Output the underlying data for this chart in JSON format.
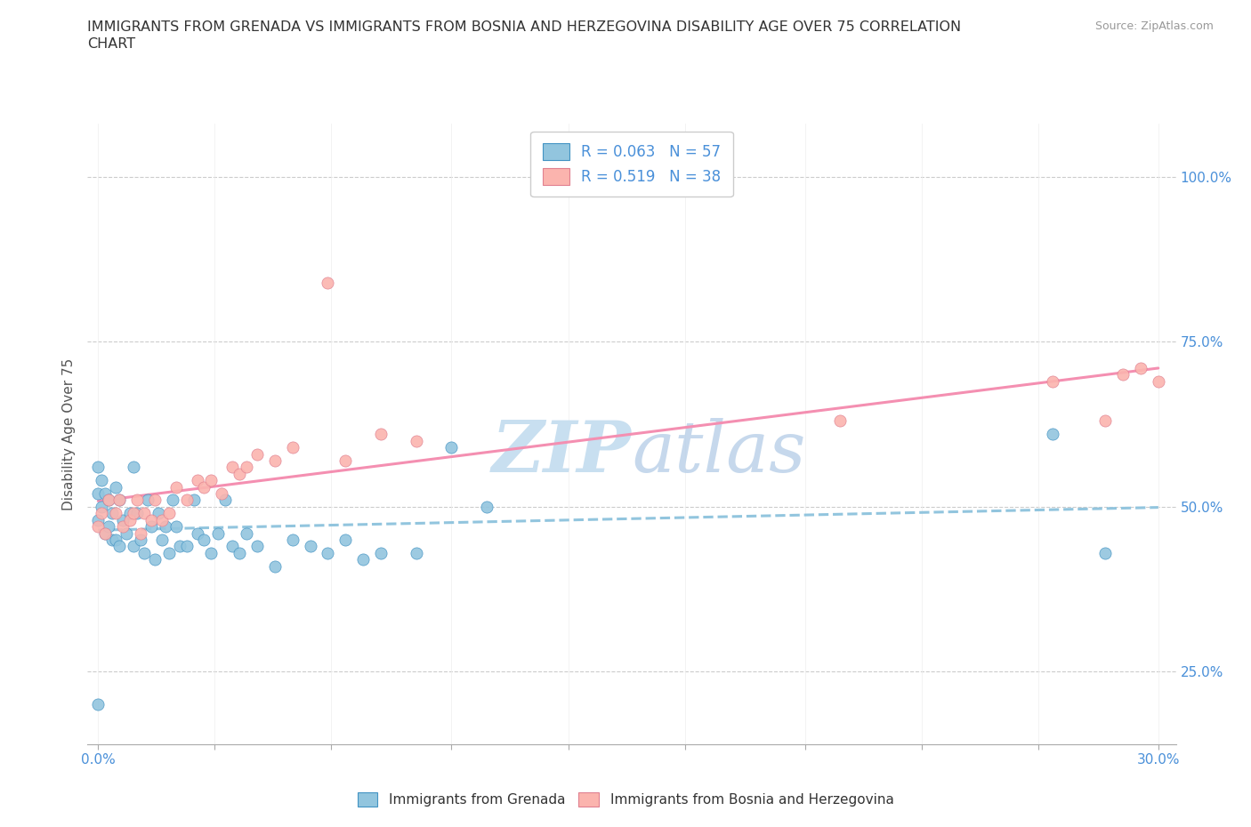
{
  "title_line1": "IMMIGRANTS FROM GRENADA VS IMMIGRANTS FROM BOSNIA AND HERZEGOVINA DISABILITY AGE OVER 75 CORRELATION",
  "title_line2": "CHART",
  "source": "Source: ZipAtlas.com",
  "ylabel": "Disability Age Over 75",
  "xlim": [
    -0.003,
    0.305
  ],
  "ylim": [
    0.14,
    1.08
  ],
  "xtick_positions": [
    0.0,
    0.033,
    0.066,
    0.1,
    0.133,
    0.166,
    0.2,
    0.233,
    0.266,
    0.3
  ],
  "ytick_positions": [
    0.25,
    0.5,
    0.75,
    1.0
  ],
  "ytick_labels": [
    "25.0%",
    "50.0%",
    "75.0%",
    "100.0%"
  ],
  "grenada_R": 0.063,
  "grenada_N": 57,
  "bosnia_R": 0.519,
  "bosnia_N": 38,
  "blue_color": "#92c5de",
  "blue_edge": "#4393c3",
  "pink_color": "#f4a582",
  "pink_edge": "#d6604d",
  "pink_color2": "#fbb4ae",
  "pink_edge2": "#e08090",
  "trend_blue_color": "#92c5de",
  "trend_pink_color": "#f48fb1",
  "watermark_color": "#c8dff0",
  "background_color": "#ffffff",
  "grenada_x": [
    0.0,
    0.0,
    0.0,
    0.0,
    0.001,
    0.001,
    0.002,
    0.002,
    0.003,
    0.003,
    0.004,
    0.004,
    0.005,
    0.005,
    0.006,
    0.006,
    0.007,
    0.008,
    0.009,
    0.01,
    0.01,
    0.011,
    0.012,
    0.013,
    0.014,
    0.015,
    0.016,
    0.017,
    0.018,
    0.019,
    0.02,
    0.021,
    0.022,
    0.023,
    0.025,
    0.027,
    0.028,
    0.03,
    0.032,
    0.034,
    0.036,
    0.038,
    0.04,
    0.042,
    0.045,
    0.05,
    0.055,
    0.06,
    0.065,
    0.07,
    0.075,
    0.08,
    0.09,
    0.1,
    0.11,
    0.27,
    0.285
  ],
  "grenada_y": [
    0.2,
    0.48,
    0.52,
    0.56,
    0.5,
    0.54,
    0.46,
    0.52,
    0.47,
    0.51,
    0.49,
    0.45,
    0.45,
    0.53,
    0.44,
    0.51,
    0.48,
    0.46,
    0.49,
    0.44,
    0.56,
    0.49,
    0.45,
    0.43,
    0.51,
    0.47,
    0.42,
    0.49,
    0.45,
    0.47,
    0.43,
    0.51,
    0.47,
    0.44,
    0.44,
    0.51,
    0.46,
    0.45,
    0.43,
    0.46,
    0.51,
    0.44,
    0.43,
    0.46,
    0.44,
    0.41,
    0.45,
    0.44,
    0.43,
    0.45,
    0.42,
    0.43,
    0.43,
    0.59,
    0.5,
    0.61,
    0.43
  ],
  "bosnia_x": [
    0.0,
    0.001,
    0.002,
    0.003,
    0.005,
    0.006,
    0.007,
    0.009,
    0.01,
    0.011,
    0.012,
    0.013,
    0.015,
    0.016,
    0.018,
    0.02,
    0.022,
    0.025,
    0.028,
    0.03,
    0.032,
    0.035,
    0.038,
    0.04,
    0.042,
    0.045,
    0.05,
    0.055,
    0.065,
    0.07,
    0.08,
    0.09,
    0.21,
    0.27,
    0.285,
    0.29,
    0.295,
    0.3
  ],
  "bosnia_y": [
    0.47,
    0.49,
    0.46,
    0.51,
    0.49,
    0.51,
    0.47,
    0.48,
    0.49,
    0.51,
    0.46,
    0.49,
    0.48,
    0.51,
    0.48,
    0.49,
    0.53,
    0.51,
    0.54,
    0.53,
    0.54,
    0.52,
    0.56,
    0.55,
    0.56,
    0.58,
    0.57,
    0.59,
    0.84,
    0.57,
    0.61,
    0.6,
    0.63,
    0.69,
    0.63,
    0.7,
    0.71,
    0.69
  ]
}
